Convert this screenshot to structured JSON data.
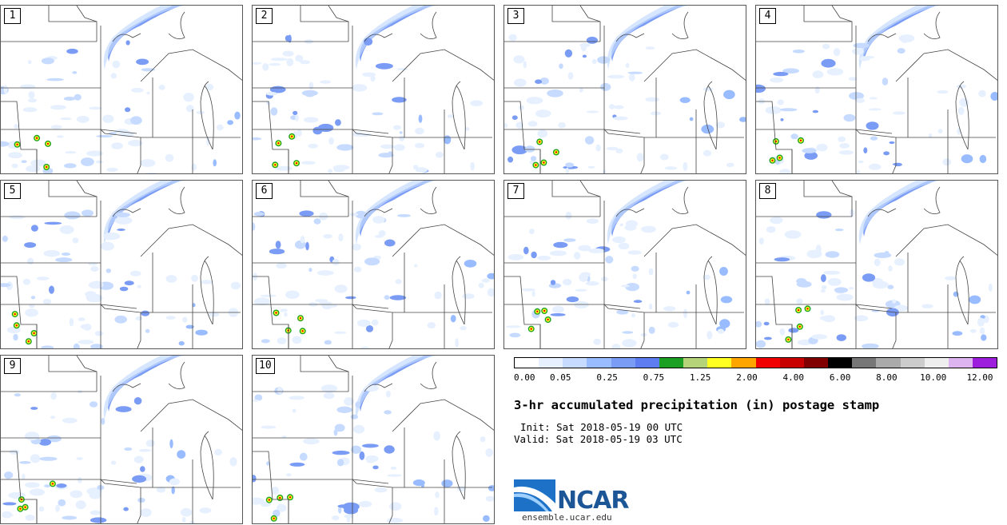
{
  "panels": [
    {
      "label": "1"
    },
    {
      "label": "2"
    },
    {
      "label": "3"
    },
    {
      "label": "4"
    },
    {
      "label": "5"
    },
    {
      "label": "6"
    },
    {
      "label": "7"
    },
    {
      "label": "8"
    },
    {
      "label": "9"
    },
    {
      "label": "10"
    }
  ],
  "colorbar": {
    "colors": [
      "#ffffff",
      "#e6f0ff",
      "#c6dbff",
      "#99bbff",
      "#7a9cf5",
      "#5d7df0",
      "#1ca024",
      "#b5d47a",
      "#ffff22",
      "#ffa500",
      "#f00000",
      "#c80000",
      "#800000",
      "#000000",
      "#777777",
      "#aaaaaa",
      "#cccccc",
      "#eeeeee",
      "#ddb4f0",
      "#9e1ede"
    ],
    "ticks": [
      "0.00",
      "0.05",
      "0.25",
      "0.75",
      "1.25",
      "2.00",
      "4.00",
      "6.00",
      "8.00",
      "10.00",
      "12.00"
    ]
  },
  "title": "3-hr accumulated precipitation (in) postage stamp",
  "init": "Init: Sat 2018-05-19 00 UTC",
  "valid": "Valid: Sat 2018-05-19 03 UTC",
  "logo": {
    "name": "NCAR",
    "url": "ensemble.ucar.edu"
  }
}
